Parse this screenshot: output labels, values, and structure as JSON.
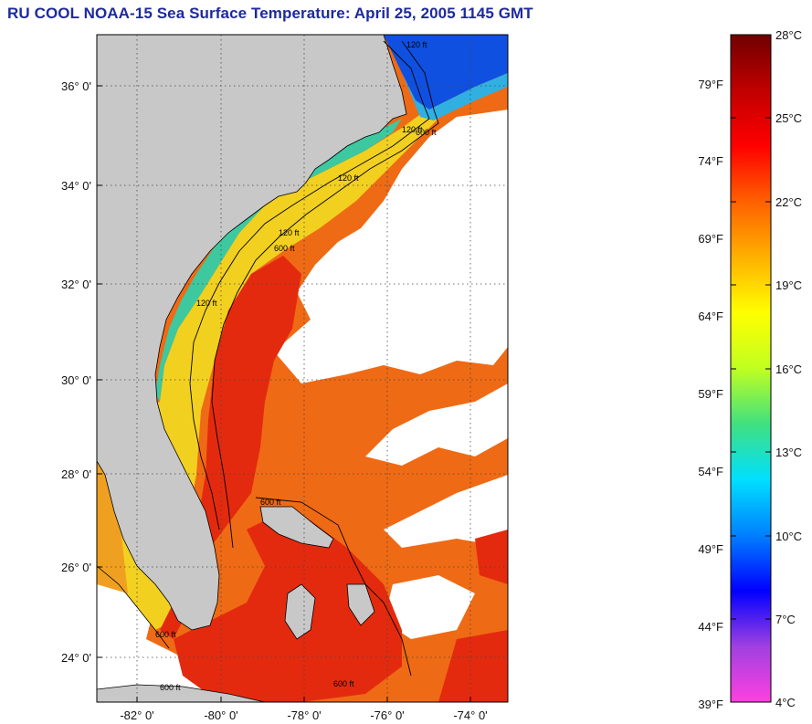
{
  "title": "RU COOL  NOAA-15  Sea Surface Temperature:  April 25, 2005 1145 GMT",
  "map": {
    "lon_ticks": [
      "-82° 0'",
      "-80° 0'",
      "-78° 0'",
      "-76° 0'",
      "-74° 0'"
    ],
    "lat_ticks": [
      "36° 0'",
      "34° 0'",
      "32° 0'",
      "30° 0'",
      "28° 0'",
      "26° 0'",
      "24° 0'"
    ],
    "isobath_labels": [
      "120 ft",
      "120 ft",
      "600 ft",
      "120 ft",
      "600 ft",
      "120 ft",
      "120 ft",
      "600 ft",
      "600 ft",
      "600 ft",
      "600 ft"
    ],
    "colors": {
      "land": "#c8c8c8",
      "cloud": "#ffffff",
      "gulf_stream": "#e83010",
      "warm_offshore": "#f06a10",
      "shelf": "#f2d020",
      "coastal": "#40c8a0",
      "cold_north": "#1050e0"
    }
  },
  "colorbar": {
    "fahrenheit_labels": [
      "79°F",
      "74°F",
      "69°F",
      "64°F",
      "59°F",
      "54°F",
      "49°F",
      "44°F",
      "39°F"
    ],
    "celsius_labels": [
      "28°C",
      "25°C",
      "22°C",
      "19°C",
      "16°C",
      "13°C",
      "10°C",
      "7°C",
      "4°C"
    ],
    "range_c": [
      4,
      28
    ],
    "range_f": [
      39,
      82
    ],
    "stops": [
      "#ff40e0",
      "#a040e0",
      "#0000ff",
      "#0080ff",
      "#00e0ff",
      "#40e080",
      "#c0ff20",
      "#ffff00",
      "#ffb000",
      "#ff6000",
      "#ff0000",
      "#c00000",
      "#700000"
    ]
  }
}
